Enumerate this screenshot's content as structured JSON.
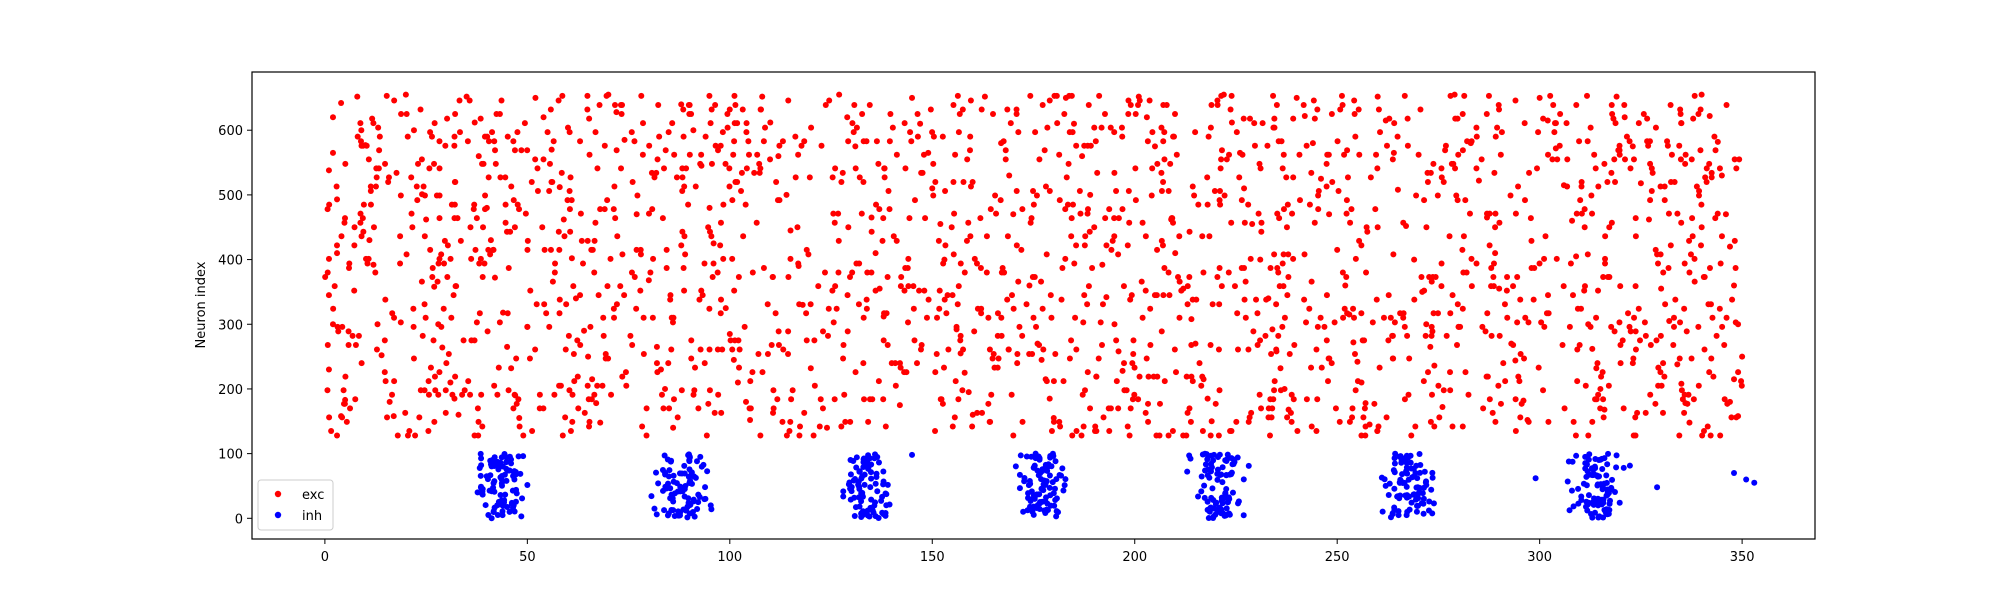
{
  "chart_data": {
    "type": "scatter",
    "title": "",
    "xlabel": "",
    "ylabel": "Neuron index",
    "xlim": [
      -18,
      368
    ],
    "ylim": [
      -32,
      690
    ],
    "xticks": [
      0,
      50,
      100,
      150,
      200,
      250,
      300,
      350
    ],
    "yticks": [
      0,
      100,
      200,
      300,
      400,
      500,
      600
    ],
    "grid": false,
    "legend_position": "lower-left",
    "series": [
      {
        "name": "exc",
        "color": "#ff0000",
        "marker": "dot",
        "x_range": [
          0,
          350
        ],
        "y_range": [
          128,
          655
        ],
        "rows": [
          [
            1,
            538
          ],
          [
            2,
            620
          ],
          [
            2,
            565
          ],
          [
            3,
            493
          ],
          [
            4,
            642
          ],
          [
            1,
            345
          ],
          [
            3,
            410
          ],
          [
            2,
            300
          ],
          [
            1,
            230
          ],
          [
            4,
            158
          ],
          [
            5,
            183
          ],
          [
            3,
            128
          ],
          [
            8,
            652
          ],
          [
            9,
            600
          ],
          [
            10,
            577
          ],
          [
            11,
            430
          ],
          [
            12,
            392
          ],
          [
            13,
            300
          ],
          [
            14,
            252
          ],
          [
            15,
            212
          ],
          [
            16,
            180
          ],
          [
            17,
            158
          ],
          [
            18,
            128
          ],
          [
            20,
            655
          ],
          [
            22,
            600
          ],
          [
            23,
            548
          ],
          [
            24,
            501
          ],
          [
            25,
            462
          ],
          [
            26,
            415
          ],
          [
            27,
            358
          ],
          [
            28,
            300
          ],
          [
            29,
            264
          ],
          [
            30,
            240
          ],
          [
            31,
            210
          ],
          [
            32,
            185
          ],
          [
            33,
            160
          ],
          [
            35,
            652
          ],
          [
            37,
            612
          ],
          [
            38,
            560
          ],
          [
            40,
            480
          ],
          [
            41,
            430
          ],
          [
            42,
            372
          ],
          [
            44,
            318
          ],
          [
            45,
            265
          ],
          [
            46,
            232
          ],
          [
            47,
            190
          ],
          [
            48,
            155
          ],
          [
            49,
            128
          ],
          [
            52,
            650
          ],
          [
            54,
            620
          ],
          [
            56,
            570
          ],
          [
            58,
            512
          ],
          [
            59,
            462
          ],
          [
            61,
            402
          ],
          [
            62,
            340
          ],
          [
            64,
            290
          ],
          [
            65,
            250
          ],
          [
            66,
            215
          ],
          [
            67,
            178
          ],
          [
            68,
            148
          ],
          [
            70,
            655
          ],
          [
            72,
            628
          ],
          [
            74,
            585
          ],
          [
            76,
            520
          ],
          [
            77,
            470
          ],
          [
            78,
            415
          ],
          [
            80,
            368
          ],
          [
            81,
            310
          ],
          [
            82,
            265
          ],
          [
            83,
            230
          ],
          [
            84,
            200
          ],
          [
            85,
            170
          ],
          [
            86,
            140
          ],
          [
            88,
            640
          ],
          [
            90,
            625
          ],
          [
            91,
            600
          ],
          [
            93,
            545
          ],
          [
            95,
            480
          ],
          [
            96,
            425
          ],
          [
            97,
            380
          ],
          [
            99,
            325
          ],
          [
            100,
            285
          ],
          [
            101,
            245
          ],
          [
            102,
            210
          ],
          [
            104,
            180
          ],
          [
            105,
            152
          ],
          [
            108,
            652
          ],
          [
            110,
            612
          ],
          [
            112,
            560
          ],
          [
            114,
            500
          ],
          [
            115,
            445
          ],
          [
            117,
            390
          ],
          [
            118,
            330
          ],
          [
            119,
            275
          ],
          [
            120,
            232
          ],
          [
            121,
            205
          ],
          [
            123,
            170
          ],
          [
            124,
            140
          ],
          [
            127,
            655
          ],
          [
            129,
            620
          ],
          [
            131,
            575
          ],
          [
            133,
            520
          ],
          [
            135,
            465
          ],
          [
            136,
            410
          ],
          [
            137,
            355
          ],
          [
            138,
            312
          ],
          [
            139,
            268
          ],
          [
            140,
            240
          ],
          [
            141,
            205
          ],
          [
            142,
            175
          ],
          [
            145,
            650
          ],
          [
            147,
            610
          ],
          [
            149,
            565
          ],
          [
            150,
            510
          ],
          [
            152,
            455
          ],
          [
            153,
            400
          ],
          [
            155,
            345
          ],
          [
            156,
            292
          ],
          [
            157,
            255
          ],
          [
            158,
            225
          ],
          [
            159,
            195
          ],
          [
            160,
            160
          ],
          [
            163,
            652
          ],
          [
            165,
            625
          ],
          [
            167,
            580
          ],
          [
            169,
            530
          ],
          [
            170,
            470
          ],
          [
            172,
            415
          ],
          [
            174,
            360
          ],
          [
            175,
            310
          ],
          [
            176,
            270
          ],
          [
            177,
            245
          ],
          [
            178,
            215
          ],
          [
            179,
            185
          ],
          [
            180,
            155
          ],
          [
            183,
            650
          ],
          [
            185,
            610
          ],
          [
            187,
            560
          ],
          [
            189,
            500
          ],
          [
            190,
            450
          ],
          [
            192,
            392
          ],
          [
            193,
            342
          ],
          [
            195,
            300
          ],
          [
            196,
            258
          ],
          [
            197,
            228
          ],
          [
            198,
            198
          ],
          [
            199,
            170
          ],
          [
            201,
            652
          ],
          [
            203,
            620
          ],
          [
            205,
            575
          ],
          [
            207,
            520
          ],
          [
            209,
            462
          ],
          [
            210,
            410
          ],
          [
            212,
            355
          ],
          [
            214,
            308
          ],
          [
            215,
            270
          ],
          [
            216,
            240
          ],
          [
            217,
            215
          ],
          [
            218,
            185
          ],
          [
            219,
            150
          ],
          [
            222,
            655
          ],
          [
            224,
            612
          ],
          [
            226,
            565
          ],
          [
            227,
            510
          ],
          [
            229,
            455
          ],
          [
            231,
            400
          ],
          [
            233,
            340
          ],
          [
            234,
            292
          ],
          [
            235,
            258
          ],
          [
            236,
            232
          ],
          [
            237,
            200
          ],
          [
            238,
            168
          ],
          [
            240,
            650
          ],
          [
            242,
            622
          ],
          [
            244,
            580
          ],
          [
            246,
            525
          ],
          [
            248,
            470
          ],
          [
            250,
            415
          ],
          [
            252,
            360
          ],
          [
            253,
            315
          ],
          [
            254,
            272
          ],
          [
            255,
            242
          ],
          [
            256,
            210
          ],
          [
            257,
            178
          ],
          [
            258,
            145
          ],
          [
            260,
            652
          ],
          [
            262,
            615
          ],
          [
            264,
            565
          ],
          [
            265,
            508
          ],
          [
            267,
            452
          ],
          [
            269,
            400
          ],
          [
            271,
            350
          ],
          [
            272,
            300
          ],
          [
            273,
            265
          ],
          [
            274,
            236
          ],
          [
            275,
            205
          ],
          [
            276,
            172
          ],
          [
            279,
            655
          ],
          [
            281,
            625
          ],
          [
            283,
            580
          ],
          [
            285,
            522
          ],
          [
            287,
            465
          ],
          [
            289,
            410
          ],
          [
            290,
            355
          ],
          [
            292,
            310
          ],
          [
            293,
            270
          ],
          [
            294,
            244
          ],
          [
            295,
            212
          ],
          [
            296,
            182
          ],
          [
            297,
            152
          ],
          [
            300,
            650
          ],
          [
            302,
            615
          ],
          [
            304,
            572
          ],
          [
            306,
            515
          ],
          [
            308,
            460
          ],
          [
            309,
            405
          ],
          [
            311,
            352
          ],
          [
            312,
            300
          ],
          [
            313,
            262
          ],
          [
            314,
            232
          ],
          [
            315,
            200
          ],
          [
            316,
            168
          ],
          [
            319,
            652
          ],
          [
            321,
            620
          ],
          [
            323,
            575
          ],
          [
            325,
            518
          ],
          [
            327,
            462
          ],
          [
            329,
            408
          ],
          [
            330,
            355
          ],
          [
            332,
            305
          ],
          [
            333,
            268
          ],
          [
            334,
            238
          ],
          [
            335,
            208
          ],
          [
            336,
            178
          ],
          [
            337,
            148
          ],
          [
            340,
            655
          ],
          [
            342,
            622
          ],
          [
            344,
            582
          ],
          [
            345,
            530
          ],
          [
            346,
            470
          ],
          [
            347,
            420
          ],
          [
            348,
            360
          ],
          [
            349,
            300
          ],
          [
            350,
            250
          ],
          [
            348,
            215
          ],
          [
            347,
            180
          ],
          [
            349,
            158
          ]
        ]
      },
      {
        "name": "inh",
        "color": "#0000ff",
        "marker": "dot",
        "bursts": [
          {
            "x_center": 44,
            "x_spread": 6,
            "count": 95
          },
          {
            "x_center": 88,
            "x_spread": 6,
            "count": 95
          },
          {
            "x_center": 134,
            "x_spread": 6,
            "count": 95
          },
          {
            "x_center": 177,
            "x_spread": 6,
            "count": 95
          },
          {
            "x_center": 221,
            "x_spread": 6,
            "count": 95
          },
          {
            "x_center": 268,
            "x_spread": 6,
            "count": 95
          },
          {
            "x_center": 314,
            "x_spread": 6,
            "count": 95
          }
        ],
        "y_range": [
          0,
          100
        ],
        "extra_points": [
          [
            348,
            70
          ],
          [
            351,
            60
          ],
          [
            353,
            55
          ],
          [
            145,
            98
          ],
          [
            299,
            62
          ],
          [
            329,
            48
          ]
        ]
      }
    ]
  }
}
